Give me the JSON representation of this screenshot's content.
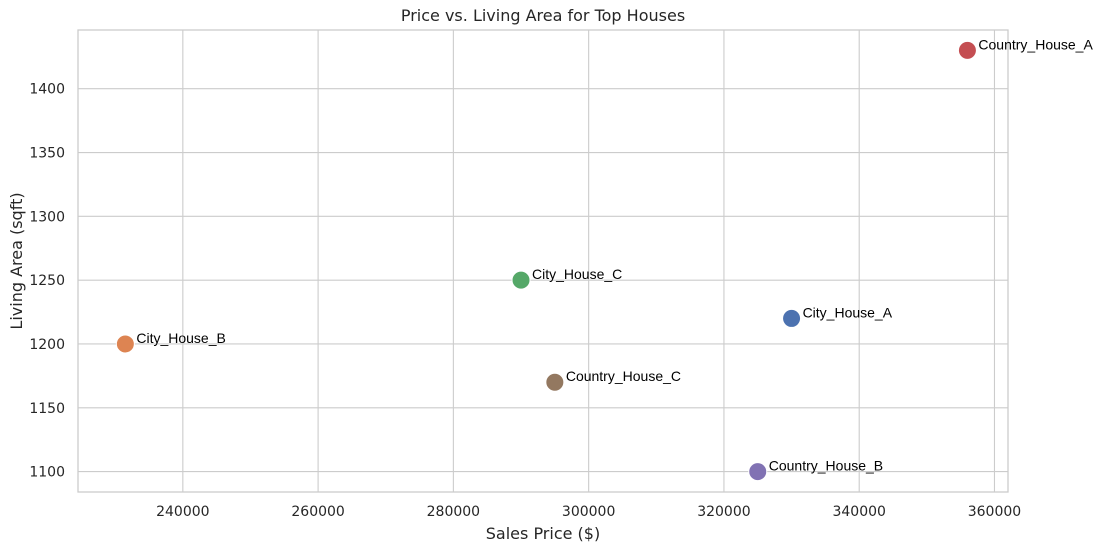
{
  "chart_data": {
    "type": "scatter",
    "title": "Price vs. Living Area for Top Houses",
    "xlabel": "Sales Price ($)",
    "ylabel": "Living Area (sqft)",
    "xlim": [
      224500,
      362000
    ],
    "ylim": [
      1084,
      1446
    ],
    "xticks": [
      240000,
      260000,
      280000,
      300000,
      320000,
      340000,
      360000
    ],
    "yticks": [
      1100,
      1150,
      1200,
      1250,
      1300,
      1350,
      1400
    ],
    "grid": true,
    "legend": "none",
    "points": [
      {
        "label": "City_House_A",
        "x": 330000,
        "y": 1220,
        "color": "#4c72b0"
      },
      {
        "label": "City_House_B",
        "x": 231500,
        "y": 1200,
        "color": "#dd8452"
      },
      {
        "label": "City_House_C",
        "x": 290000,
        "y": 1250,
        "color": "#55a868"
      },
      {
        "label": "Country_House_A",
        "x": 356000,
        "y": 1430,
        "color": "#c44e52"
      },
      {
        "label": "Country_House_B",
        "x": 325000,
        "y": 1100,
        "color": "#8172b3"
      },
      {
        "label": "Country_House_C",
        "x": 295000,
        "y": 1170,
        "color": "#937860"
      }
    ]
  }
}
